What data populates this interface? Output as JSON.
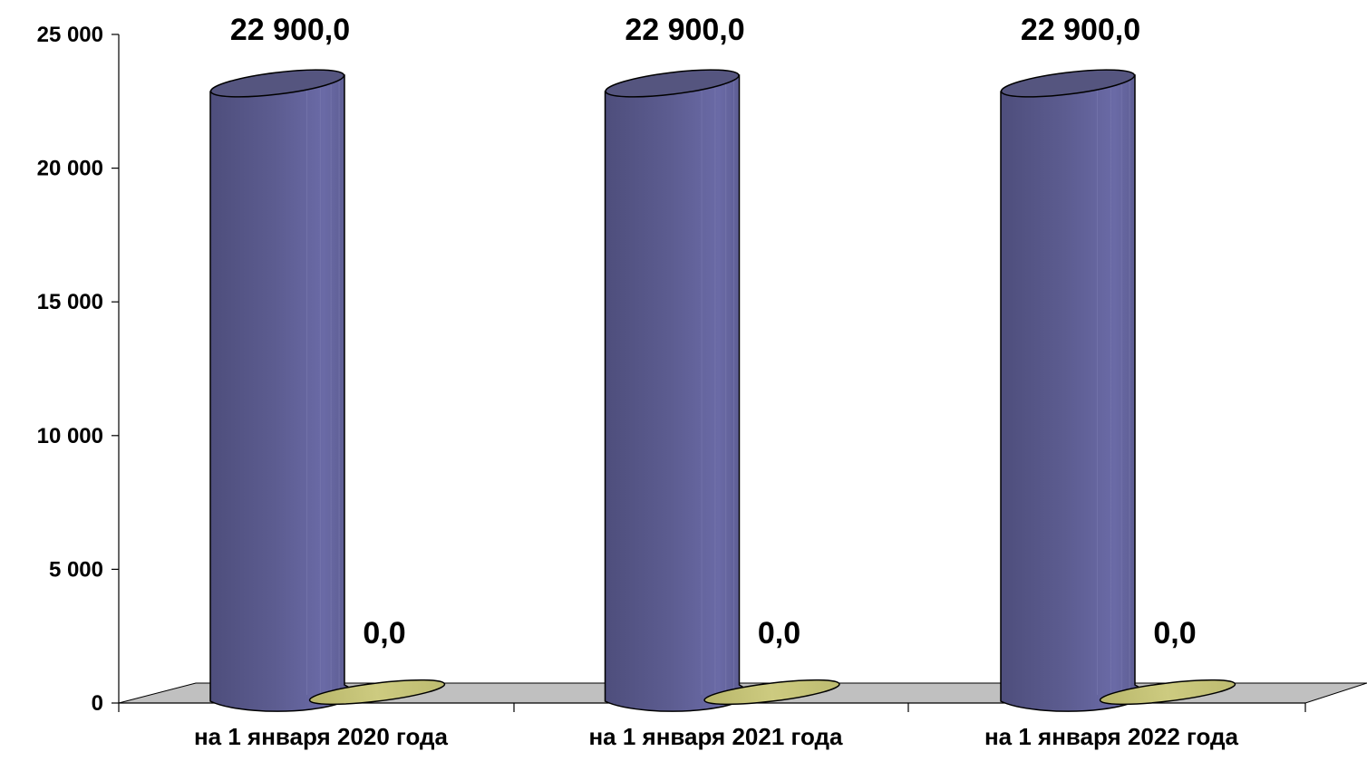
{
  "chart_data": {
    "type": "bar",
    "style": "3d-cylinder",
    "title": "",
    "xlabel": "",
    "ylabel": "",
    "ylim": [
      0,
      25000
    ],
    "yticks": [
      0,
      5000,
      10000,
      15000,
      20000,
      25000
    ],
    "ytick_labels": [
      "0",
      "5 000",
      "10 000",
      "15 000",
      "20 000",
      "25 000"
    ],
    "grid": false,
    "legend": "none",
    "categories": [
      "на 1 января 2020 года",
      "на  1 января 2021 года",
      "на  1 января 2022 года"
    ],
    "series": [
      {
        "values": [
          22900,
          22900,
          22900
        ],
        "data_labels": [
          "22 900,0",
          "22 900,0",
          "22 900,0"
        ],
        "color": "#60609a"
      },
      {
        "values": [
          0,
          0,
          0
        ],
        "data_labels": [
          "0,0",
          "0,0",
          "0,0"
        ],
        "color": "#c9c77a"
      }
    ],
    "floor_color": "#c0c0c0"
  }
}
